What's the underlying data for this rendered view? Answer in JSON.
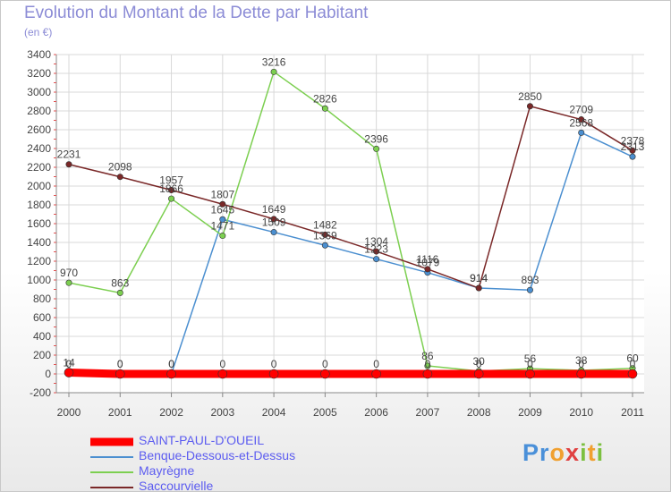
{
  "header": {
    "title": "Evolution du Montant de la Dette par Habitant",
    "unit": "(en €)"
  },
  "logo": {
    "chars": [
      "P",
      "r",
      "o",
      "x",
      "i",
      "t",
      "i"
    ],
    "colors": [
      "#4a90d9",
      "#4a90d9",
      "#f0a030",
      "#e04040",
      "#7cc040",
      "#f0a030",
      "#7cc040"
    ]
  },
  "chart_data": {
    "type": "line",
    "title": "Evolution du Montant de la Dette par Habitant",
    "ylabel": "(en €)",
    "xlabel": "",
    "x": [
      "2000",
      "2001",
      "2002",
      "2003",
      "2004",
      "2005",
      "2006",
      "2007",
      "2008",
      "2009",
      "2010",
      "2011"
    ],
    "ylim": [
      -200,
      3400
    ],
    "yticks": [
      -200,
      0,
      200,
      400,
      600,
      800,
      1000,
      1200,
      1400,
      1600,
      1800,
      2000,
      2200,
      2400,
      2600,
      2800,
      3000,
      3200,
      3400
    ],
    "grid": true,
    "legend_position": "bottom-left",
    "series": [
      {
        "name": "SAINT-PAUL-D'OUEIL",
        "color": "#ff0000",
        "values": [
          14,
          0,
          0,
          0,
          0,
          0,
          0,
          0,
          0,
          0,
          0,
          0
        ],
        "labels": [
          "14",
          "0",
          "0",
          "0",
          "0",
          "0",
          "0",
          "0",
          "0",
          "0",
          "0",
          "0"
        ]
      },
      {
        "name": "Benque-Dessous-et-Dessus",
        "color": "#4b8fd0",
        "values": [
          0,
          0,
          0,
          1645,
          1509,
          1369,
          1223,
          1079,
          914,
          893,
          2568,
          2313
        ],
        "labels": [
          "0",
          "0",
          "0",
          "1645",
          "1509",
          "1369",
          "1223",
          "1079",
          "914",
          "893",
          "2568",
          "2313"
        ]
      },
      {
        "name": "Mayrègne",
        "color": "#7ccf50",
        "values": [
          970,
          863,
          1866,
          1471,
          3216,
          2826,
          2396,
          86,
          30,
          56,
          38,
          60
        ],
        "labels": [
          "970",
          "863",
          "1866",
          "1471",
          "3216",
          "2826",
          "2396",
          "86",
          "30",
          "56",
          "38",
          "60"
        ]
      },
      {
        "name": "Saccourvielle",
        "color": "#7a2828",
        "values": [
          2231,
          2098,
          1957,
          1807,
          1649,
          1482,
          1304,
          1116,
          914,
          2850,
          2709,
          2378
        ],
        "labels": [
          "2231",
          "2098",
          "1957",
          "1807",
          "1649",
          "1482",
          "1304",
          "1116",
          "914",
          "2850",
          "2709",
          "2378"
        ]
      }
    ]
  }
}
